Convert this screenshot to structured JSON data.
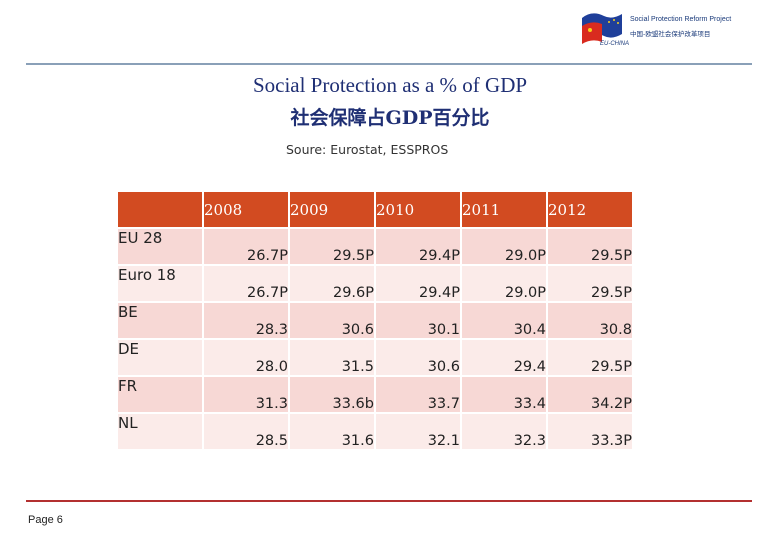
{
  "logo": {
    "line1": "Social Protection Reform Project",
    "line2": "中国-欧盟社会保护改革项目",
    "line3": "EU-CHINA"
  },
  "title": {
    "english": "Social Protection as a % of GDP",
    "chinese": "社会保障占GDP百分比"
  },
  "source": "Soure: Eurostat, ESSPROS",
  "table": {
    "header_blank": "",
    "years": [
      "2008",
      "2009",
      "2010",
      "2011",
      "2012"
    ],
    "rows": [
      {
        "label": "EU 28",
        "values": [
          "26.7P",
          "29.5P",
          "29.4P",
          "29.0P",
          "29.5P"
        ]
      },
      {
        "label": "Euro 18",
        "values": [
          "26.7P",
          "29.6P",
          "29.4P",
          "29.0P",
          "29.5P"
        ]
      },
      {
        "label": "BE",
        "values": [
          "28.3",
          "30.6",
          "30.1",
          "30.4",
          "30.8"
        ]
      },
      {
        "label": "DE",
        "values": [
          "28.0",
          "31.5",
          "30.6",
          "29.4",
          "29.5P"
        ]
      },
      {
        "label": "FR",
        "values": [
          "31.3",
          "33.6b",
          "33.7",
          "33.4",
          "34.2P"
        ]
      },
      {
        "label": "NL",
        "values": [
          "28.5",
          "31.6",
          "32.1",
          "32.3",
          "33.3P"
        ]
      }
    ]
  },
  "footer": {
    "page": "Page 6"
  },
  "colors": {
    "header": "#d24b21",
    "row_dark": "#f7d8d5",
    "row_light": "#fbebe9",
    "title": "#1f2f74",
    "rule_top": "#8aa0b8",
    "rule_bottom": "#b33030"
  }
}
